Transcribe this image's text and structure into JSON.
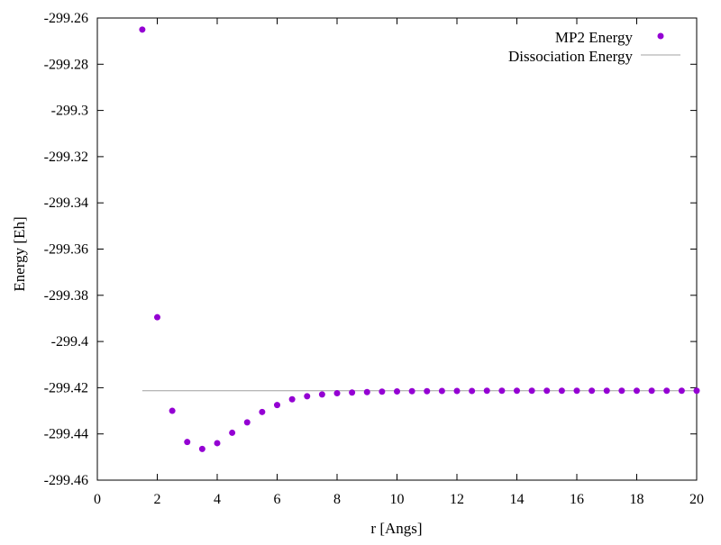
{
  "chart_data": {
    "type": "scatter",
    "title": "",
    "xlabel": "r [Angs]",
    "ylabel": "Energy [Eh]",
    "xlim": [
      0,
      20
    ],
    "ylim": [
      -299.46,
      -299.26
    ],
    "grid": false,
    "legend_position": "top-right",
    "x_ticks": [
      {
        "value": 0,
        "label": "0"
      },
      {
        "value": 2,
        "label": "2"
      },
      {
        "value": 4,
        "label": "4"
      },
      {
        "value": 6,
        "label": "6"
      },
      {
        "value": 8,
        "label": "8"
      },
      {
        "value": 10,
        "label": "10"
      },
      {
        "value": 12,
        "label": "12"
      },
      {
        "value": 14,
        "label": "14"
      },
      {
        "value": 16,
        "label": "16"
      },
      {
        "value": 18,
        "label": "18"
      },
      {
        "value": 20,
        "label": "20"
      }
    ],
    "y_ticks": [
      {
        "value": -299.26,
        "label": "-299.26"
      },
      {
        "value": -299.28,
        "label": "-299.28"
      },
      {
        "value": -299.3,
        "label": "-299.3"
      },
      {
        "value": -299.32,
        "label": "-299.32"
      },
      {
        "value": -299.34,
        "label": "-299.34"
      },
      {
        "value": -299.36,
        "label": "-299.36"
      },
      {
        "value": -299.38,
        "label": "-299.38"
      },
      {
        "value": -299.4,
        "label": "-299.4"
      },
      {
        "value": -299.42,
        "label": "-299.42"
      },
      {
        "value": -299.44,
        "label": "-299.44"
      },
      {
        "value": -299.46,
        "label": "-299.46"
      }
    ],
    "series": [
      {
        "name": "MP2 Energy",
        "kind": "points",
        "color": "#9400d3",
        "points": [
          {
            "x": 1.5,
            "y": -299.265
          },
          {
            "x": 2.0,
            "y": -299.3895
          },
          {
            "x": 2.5,
            "y": -299.43
          },
          {
            "x": 3.0,
            "y": -299.4435
          },
          {
            "x": 3.5,
            "y": -299.4465
          },
          {
            "x": 4.0,
            "y": -299.444
          },
          {
            "x": 4.5,
            "y": -299.4395
          },
          {
            "x": 5.0,
            "y": -299.435
          },
          {
            "x": 5.5,
            "y": -299.4305
          },
          {
            "x": 6.0,
            "y": -299.4275
          },
          {
            "x": 6.5,
            "y": -299.425
          },
          {
            "x": 7.0,
            "y": -299.4237
          },
          {
            "x": 7.5,
            "y": -299.4229
          },
          {
            "x": 8.0,
            "y": -299.4224
          },
          {
            "x": 8.5,
            "y": -299.4221
          },
          {
            "x": 9.0,
            "y": -299.4219
          },
          {
            "x": 9.5,
            "y": -299.4217
          },
          {
            "x": 10.0,
            "y": -299.4216
          },
          {
            "x": 10.5,
            "y": -299.4215
          },
          {
            "x": 11.0,
            "y": -299.4215
          },
          {
            "x": 11.5,
            "y": -299.4214
          },
          {
            "x": 12.0,
            "y": -299.4214
          },
          {
            "x": 12.5,
            "y": -299.4214
          },
          {
            "x": 13.0,
            "y": -299.4213
          },
          {
            "x": 13.5,
            "y": -299.4213
          },
          {
            "x": 14.0,
            "y": -299.4213
          },
          {
            "x": 14.5,
            "y": -299.4213
          },
          {
            "x": 15.0,
            "y": -299.4213
          },
          {
            "x": 15.5,
            "y": -299.4213
          },
          {
            "x": 16.0,
            "y": -299.4213
          },
          {
            "x": 16.5,
            "y": -299.4213
          },
          {
            "x": 17.0,
            "y": -299.4213
          },
          {
            "x": 17.5,
            "y": -299.4213
          },
          {
            "x": 18.0,
            "y": -299.4213
          },
          {
            "x": 18.5,
            "y": -299.4213
          },
          {
            "x": 19.0,
            "y": -299.4213
          },
          {
            "x": 19.5,
            "y": -299.4213
          },
          {
            "x": 20.0,
            "y": -299.4213
          }
        ]
      },
      {
        "name": "Dissociation Energy",
        "kind": "line",
        "color": "#a0a0a0",
        "points": [
          {
            "x": 1.5,
            "y": -299.4213
          },
          {
            "x": 20.0,
            "y": -299.4213
          }
        ]
      }
    ]
  }
}
